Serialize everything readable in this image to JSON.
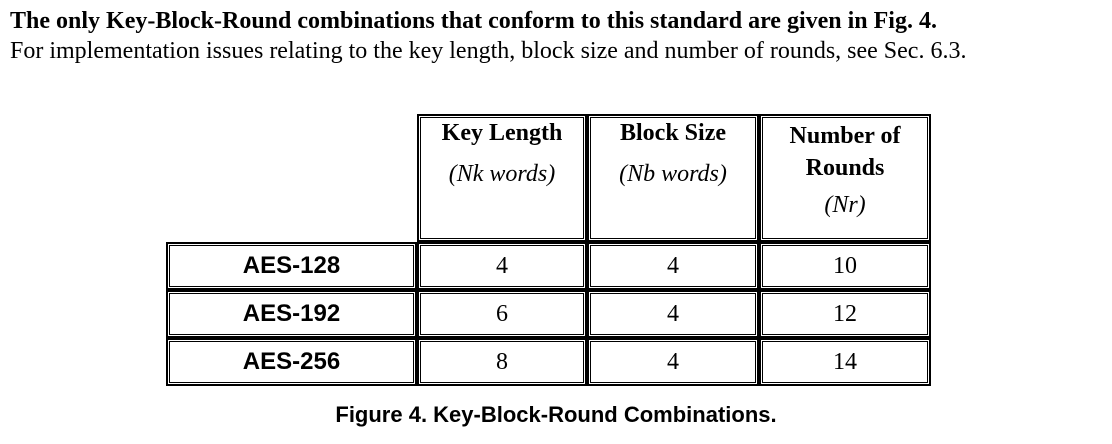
{
  "intro": {
    "bold_sentence": "The only Key-Block-Round combinations that conform to this standard are given in Fig. 4.",
    "text": "For implementation issues relating to the key length, block size and number of rounds, see Sec. 6.3."
  },
  "table": {
    "headers": [
      {
        "title": "Key Length",
        "subtitle": "(Nk words)"
      },
      {
        "title": "Block Size",
        "subtitle": "(Nb words)"
      },
      {
        "title": "Number of Rounds",
        "subtitle": "(Nr)"
      }
    ],
    "rows": [
      {
        "label": "AES-128",
        "values": [
          "4",
          "4",
          "10"
        ]
      },
      {
        "label": "AES-192",
        "values": [
          "6",
          "4",
          "12"
        ]
      },
      {
        "label": "AES-256",
        "values": [
          "8",
          "4",
          "14"
        ]
      }
    ]
  },
  "caption": "Figure 4.  Key-Block-Round Combinations."
}
